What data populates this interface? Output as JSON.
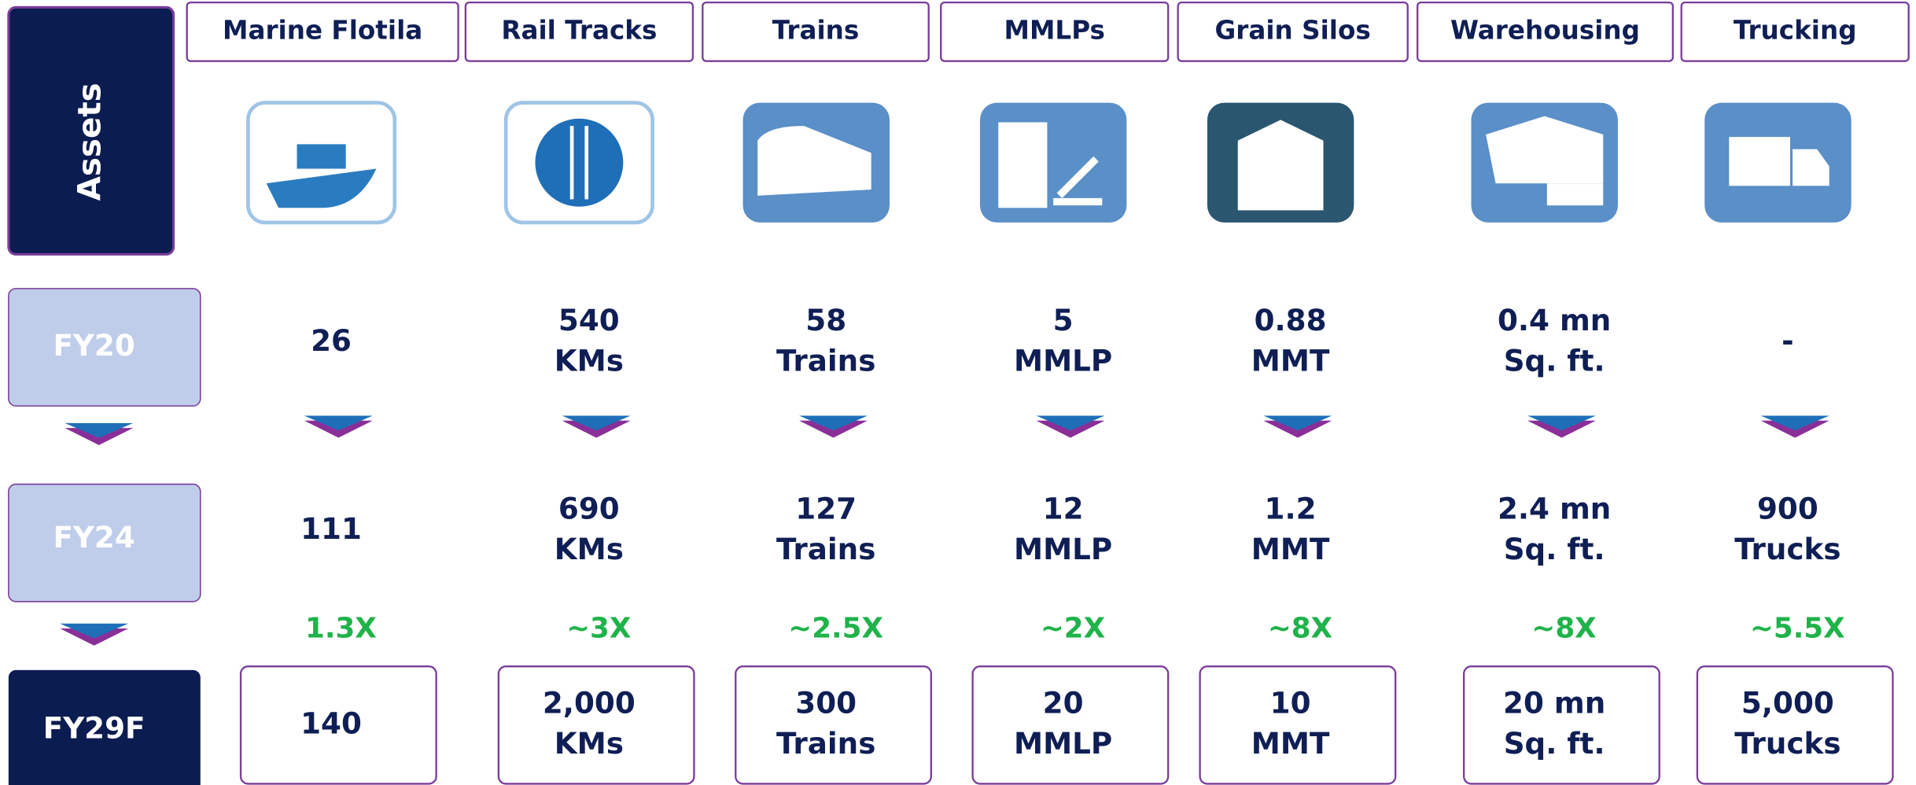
{
  "row_labels": {
    "assets": "Assets",
    "fy20": "FY20",
    "fy24": "FY24",
    "fy29f": "FY29F"
  },
  "columns": [
    {
      "header": "Marine Flotila",
      "fy20": [
        "26"
      ],
      "fy24": [
        "111"
      ],
      "growth": "1.3X",
      "fy29f": [
        "140"
      ]
    },
    {
      "header": "Rail Tracks",
      "fy20": [
        "540",
        "KMs"
      ],
      "fy24": [
        "690",
        "KMs"
      ],
      "growth": "~3X",
      "fy29f": [
        "2,000",
        "KMs"
      ]
    },
    {
      "header": "Trains",
      "fy20": [
        "58",
        "Trains"
      ],
      "fy24": [
        "127",
        "Trains"
      ],
      "growth": "~2.5X",
      "fy29f": [
        "300",
        "Trains"
      ]
    },
    {
      "header": "MMLPs",
      "fy20": [
        "5",
        "MMLP"
      ],
      "fy24": [
        "12",
        "MMLP"
      ],
      "growth": "~2X",
      "fy29f": [
        "20",
        "MMLP"
      ]
    },
    {
      "header": "Grain Silos",
      "fy20": [
        "0.88",
        "MMT"
      ],
      "fy24": [
        "1.2",
        "MMT"
      ],
      "growth": "~8X",
      "fy29f": [
        "10",
        "MMT"
      ]
    },
    {
      "header": "Warehousing",
      "fy20": [
        "0.4 mn",
        "Sq. ft."
      ],
      "fy24": [
        "2.4 mn",
        "Sq. ft."
      ],
      "growth": "~8X",
      "fy29f": [
        "20 mn",
        "Sq. ft."
      ]
    },
    {
      "header": "Trucking",
      "fy20": [
        "-"
      ],
      "fy24": [
        "900",
        "Trucks"
      ],
      "growth": "~5.5X",
      "fy29f": [
        "5,000",
        "Trucks"
      ]
    }
  ]
}
